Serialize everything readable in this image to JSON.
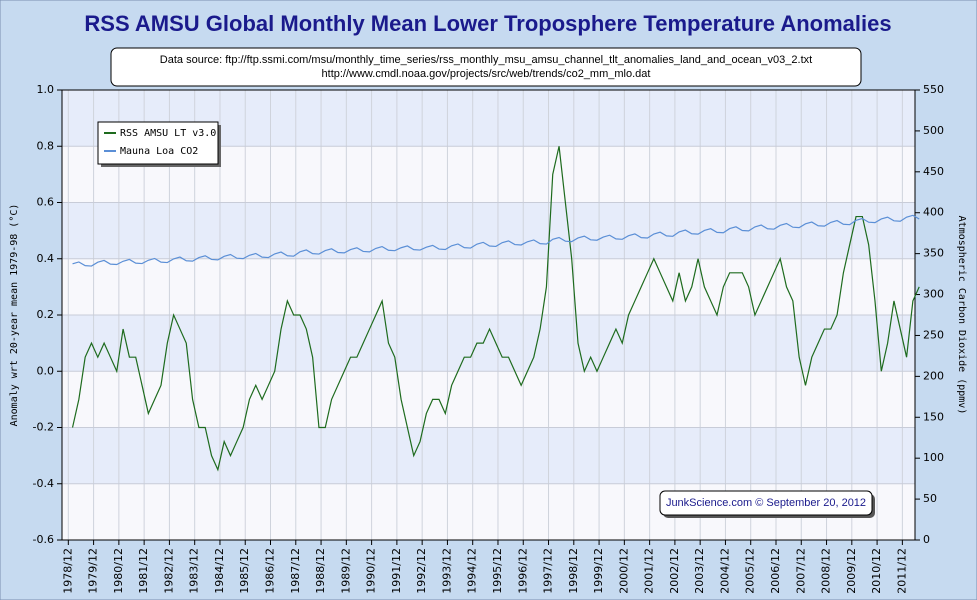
{
  "chart_data": {
    "type": "line",
    "title": "RSS AMSU Global Monthly Mean Lower Troposphere Temperature Anomalies",
    "subtitle": [
      "Data source: ftp://ftp.ssmi.com/msu/monthly_time_series/rss_monthly_msu_amsu_channel_tlt_anomalies_land_and_ocean_v03_2.txt",
      "http://www.cmdl.noaa.gov/projects/src/web/trends/co2_mm_mlo.dat"
    ],
    "annotation": "JunkScience.com © September 20, 2012",
    "ylabel": "Anomaly wrt 20-year mean 1979-98 (°C)",
    "y2label": "Atmospheric Carbon Dioxide (ppmv)",
    "x": [
      "1979/02",
      "1979/05",
      "1979/08",
      "1979/11",
      "1980/02",
      "1980/05",
      "1980/08",
      "1980/11",
      "1981/02",
      "1981/05",
      "1981/08",
      "1981/11",
      "1982/02",
      "1982/05",
      "1982/08",
      "1982/11",
      "1983/02",
      "1983/05",
      "1983/08",
      "1983/11",
      "1984/02",
      "1984/05",
      "1984/08",
      "1984/11",
      "1985/02",
      "1985/05",
      "1985/08",
      "1985/11",
      "1986/02",
      "1986/05",
      "1986/08",
      "1986/11",
      "1987/02",
      "1987/05",
      "1987/08",
      "1987/11",
      "1988/02",
      "1988/05",
      "1988/08",
      "1988/11",
      "1989/02",
      "1989/05",
      "1989/08",
      "1989/11",
      "1990/02",
      "1990/05",
      "1990/08",
      "1990/11",
      "1991/02",
      "1991/05",
      "1991/08",
      "1991/11",
      "1992/02",
      "1992/05",
      "1992/08",
      "1992/11",
      "1993/02",
      "1993/05",
      "1993/08",
      "1993/11",
      "1994/02",
      "1994/05",
      "1994/08",
      "1994/11",
      "1995/02",
      "1995/05",
      "1995/08",
      "1995/11",
      "1996/02",
      "1996/05",
      "1996/08",
      "1996/11",
      "1997/02",
      "1997/05",
      "1997/08",
      "1997/11",
      "1998/02",
      "1998/05",
      "1998/08",
      "1998/11",
      "1999/02",
      "1999/05",
      "1999/08",
      "1999/11",
      "2000/02",
      "2000/05",
      "2000/08",
      "2000/11",
      "2001/02",
      "2001/05",
      "2001/08",
      "2001/11",
      "2002/02",
      "2002/05",
      "2002/08",
      "2002/11",
      "2003/02",
      "2003/05",
      "2003/08",
      "2003/11",
      "2004/02",
      "2004/05",
      "2004/08",
      "2004/11",
      "2005/02",
      "2005/05",
      "2005/08",
      "2005/11",
      "2006/02",
      "2006/05",
      "2006/08",
      "2006/11",
      "2007/02",
      "2007/05",
      "2007/08",
      "2007/11",
      "2008/02",
      "2008/05",
      "2008/08",
      "2008/11",
      "2009/02",
      "2009/05",
      "2009/08",
      "2009/11",
      "2010/02",
      "2010/05",
      "2010/08",
      "2010/11",
      "2011/02",
      "2011/05",
      "2011/08",
      "2011/11",
      "2012/02",
      "2012/05",
      "2012/08"
    ],
    "series": [
      {
        "name": "RSS AMSU LT v3.0",
        "color": "#1e6b1e",
        "values": [
          -0.2,
          -0.1,
          0.05,
          0.1,
          0.05,
          0.1,
          0.05,
          0.0,
          0.15,
          0.05,
          0.05,
          -0.05,
          -0.15,
          -0.1,
          -0.05,
          0.1,
          0.2,
          0.15,
          0.1,
          -0.1,
          -0.2,
          -0.2,
          -0.3,
          -0.35,
          -0.25,
          -0.3,
          -0.25,
          -0.2,
          -0.1,
          -0.05,
          -0.1,
          -0.05,
          0.0,
          0.15,
          0.25,
          0.2,
          0.2,
          0.15,
          0.05,
          -0.2,
          -0.2,
          -0.1,
          -0.05,
          0.0,
          0.05,
          0.05,
          0.1,
          0.15,
          0.2,
          0.25,
          0.1,
          0.05,
          -0.1,
          -0.2,
          -0.3,
          -0.25,
          -0.15,
          -0.1,
          -0.1,
          -0.15,
          -0.05,
          0.0,
          0.05,
          0.05,
          0.1,
          0.1,
          0.15,
          0.1,
          0.05,
          0.05,
          0.0,
          -0.05,
          0.0,
          0.05,
          0.15,
          0.3,
          0.7,
          0.8,
          0.6,
          0.4,
          0.1,
          0.0,
          0.05,
          0.0,
          0.05,
          0.1,
          0.15,
          0.1,
          0.2,
          0.25,
          0.3,
          0.35,
          0.4,
          0.35,
          0.3,
          0.25,
          0.35,
          0.25,
          0.3,
          0.4,
          0.3,
          0.25,
          0.2,
          0.3,
          0.35,
          0.35,
          0.35,
          0.3,
          0.2,
          0.25,
          0.3,
          0.35,
          0.4,
          0.3,
          0.25,
          0.05,
          -0.05,
          0.05,
          0.1,
          0.15,
          0.15,
          0.2,
          0.35,
          0.45,
          0.55,
          0.55,
          0.45,
          0.25,
          0.0,
          0.1,
          0.25,
          0.15,
          0.05,
          0.25,
          0.3
        ]
      },
      {
        "name": "Mauna Loa CO2",
        "color": "#5b8fd6",
        "axis": "y2",
        "values": [
          337.6,
          339.8,
          335.3,
          334.8,
          339.5,
          341.7,
          337.2,
          336.7,
          340.7,
          342.9,
          338.4,
          337.9,
          341.9,
          344.1,
          339.6,
          339.1,
          343.6,
          345.8,
          341.3,
          340.8,
          345.2,
          347.4,
          342.9,
          342.4,
          346.7,
          348.9,
          344.4,
          343.9,
          348.0,
          350.2,
          345.7,
          345.2,
          349.7,
          351.9,
          347.4,
          346.9,
          352.3,
          354.5,
          350.0,
          349.5,
          353.7,
          355.9,
          351.4,
          350.9,
          355.0,
          357.2,
          352.7,
          352.2,
          356.4,
          358.6,
          354.1,
          353.6,
          357.2,
          359.4,
          354.9,
          354.4,
          357.9,
          360.1,
          355.6,
          355.1,
          359.6,
          361.8,
          357.3,
          356.8,
          361.6,
          363.8,
          359.3,
          358.8,
          363.4,
          365.6,
          361.1,
          360.6,
          364.5,
          366.7,
          362.2,
          361.7,
          367.5,
          369.7,
          365.2,
          364.7,
          369.2,
          371.4,
          366.9,
          366.4,
          370.3,
          372.5,
          368.0,
          367.5,
          371.9,
          374.1,
          369.6,
          369.1,
          374.0,
          376.2,
          371.7,
          371.2,
          376.6,
          378.8,
          374.3,
          373.8,
          378.3,
          380.5,
          376.0,
          375.5,
          380.6,
          382.8,
          378.3,
          377.8,
          382.7,
          384.9,
          380.4,
          379.9,
          384.6,
          386.8,
          382.3,
          381.8,
          386.4,
          388.6,
          384.1,
          383.6,
          388.2,
          390.4,
          385.9,
          385.4,
          390.7,
          392.9,
          388.4,
          387.9,
          392.4,
          394.6,
          390.1,
          389.6,
          394.6,
          396.8,
          392.3
        ]
      }
    ],
    "xlim": [
      "1978/09",
      "2012/06"
    ],
    "xticks": [
      "1978/12",
      "1979/12",
      "1980/12",
      "1981/12",
      "1982/12",
      "1983/12",
      "1984/12",
      "1985/12",
      "1986/12",
      "1987/12",
      "1988/12",
      "1989/12",
      "1990/12",
      "1991/12",
      "1992/12",
      "1993/12",
      "1994/12",
      "1995/12",
      "1996/12",
      "1997/12",
      "1998/12",
      "1999/12",
      "2000/12",
      "2001/12",
      "2002/12",
      "2003/12",
      "2004/12",
      "2005/12",
      "2006/12",
      "2007/12",
      "2008/12",
      "2009/12",
      "2010/12",
      "2011/12"
    ],
    "ylim": [
      -0.6,
      1.0
    ],
    "yticks": [
      -0.6,
      -0.4,
      -0.2,
      {
        "value": 0,
        "label": "0.0"
      },
      0.2,
      0.4,
      0.6,
      0.8,
      {
        "value": 1,
        "label": "1.0"
      }
    ],
    "y2lim": [
      0,
      550
    ],
    "y2ticks": [
      0,
      50,
      100,
      150,
      200,
      250,
      300,
      350,
      400,
      450,
      500,
      550
    ],
    "grid": true,
    "legend": "upper left"
  }
}
